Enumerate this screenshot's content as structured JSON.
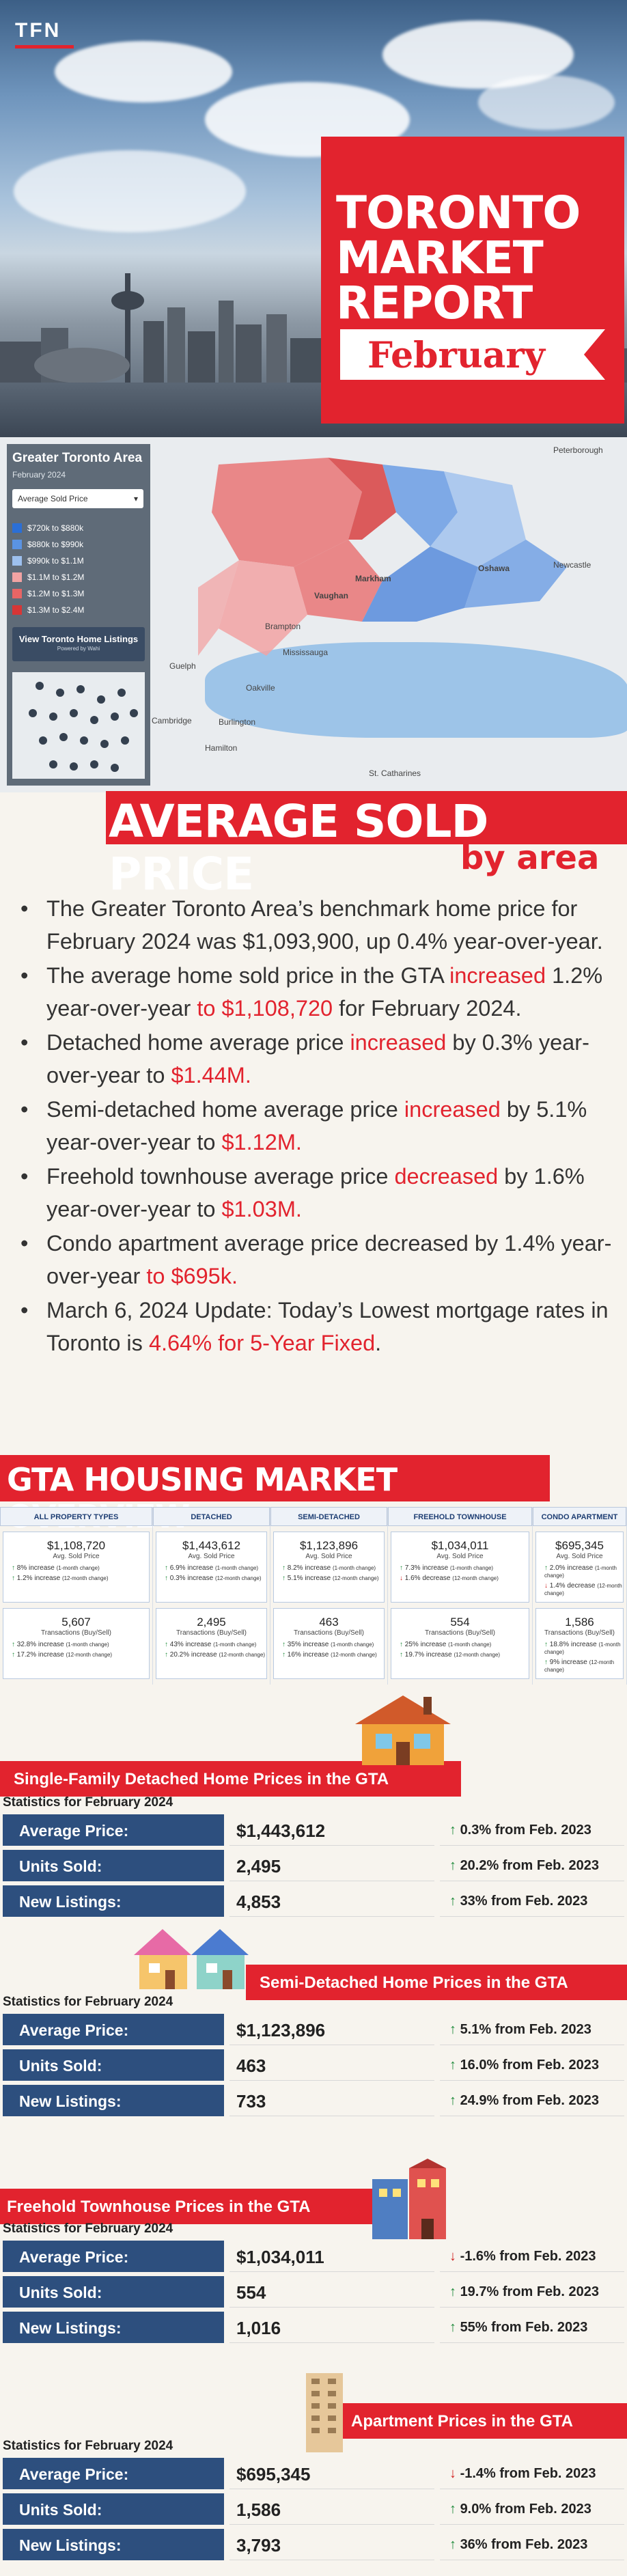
{
  "hero": {
    "logo": "TFN",
    "title_lines": [
      "TORONTO",
      "MARKET",
      "REPORT"
    ],
    "month": "February"
  },
  "map": {
    "panel_title": "Greater Toronto Area",
    "panel_sub": "February 2024",
    "select_value": "Average Sold Price",
    "legend": [
      {
        "label": "$720k to $880k",
        "color": "#2b6fd6"
      },
      {
        "label": "$880k to $990k",
        "color": "#5a93e3"
      },
      {
        "label": "$990k to $1.1M",
        "color": "#9dc0ee"
      },
      {
        "label": "$1.1M to $1.2M",
        "color": "#f2a3a3"
      },
      {
        "label": "$1.2M to $1.3M",
        "color": "#e86565"
      },
      {
        "label": "$1.3M to $2.4M",
        "color": "#d73636"
      }
    ],
    "button_title": "View Toronto Home Listings",
    "button_sub": "Powered by Wahi",
    "places": [
      "Peterborough",
      "Markham",
      "Vaughan",
      "Oshawa",
      "Brampton",
      "Mississauga",
      "Guelph",
      "Oakville",
      "Burlington",
      "Hamilton",
      "St. Catharines",
      "Cambridge",
      "Newcastle"
    ]
  },
  "headline": {
    "title": "AVERAGE SOLD PRICE",
    "subtitle": "by area"
  },
  "bullets": [
    [
      {
        "t": "The Greater Toronto Area’s benchmark home price for February 2024 was $1,093,900, up 0.4% year-over-year.",
        "c": ""
      }
    ],
    [
      {
        "t": "The average home sold price in the GTA ",
        "c": ""
      },
      {
        "t": "increased",
        "c": "red"
      },
      {
        "t": " 1.2% year-over-year ",
        "c": ""
      },
      {
        "t": "to $1,108,720",
        "c": "red"
      },
      {
        "t": " for February 2024.",
        "c": ""
      }
    ],
    [
      {
        "t": "Detached home average price ",
        "c": ""
      },
      {
        "t": "increased",
        "c": "red"
      },
      {
        "t": " by 0.3% year-over-year to ",
        "c": ""
      },
      {
        "t": "$1.44M.",
        "c": "red"
      }
    ],
    [
      {
        "t": "Semi-detached home average price ",
        "c": ""
      },
      {
        "t": "increased",
        "c": "red"
      },
      {
        "t": " by 5.1% year-over-year to ",
        "c": ""
      },
      {
        "t": "$1.12M.",
        "c": "red"
      }
    ],
    [
      {
        "t": "Freehold townhouse average price ",
        "c": ""
      },
      {
        "t": "decreased",
        "c": "red"
      },
      {
        "t": " by 1.6% year-over-year to ",
        "c": ""
      },
      {
        "t": "$1.03M.",
        "c": "red"
      }
    ],
    [
      {
        "t": "Condo apartment average price decreased by 1.4% year-over-year ",
        "c": ""
      },
      {
        "t": "to $695k.",
        "c": "red"
      }
    ],
    [
      {
        "t": "March 6, 2024 Update: Today’s Lowest mortgage rates in Toronto is ",
        "c": ""
      },
      {
        "t": "4.64% for 5-Year Fixed",
        "c": "red"
      },
      {
        "t": ".",
        "c": ""
      }
    ]
  ],
  "overview": {
    "title": "GTA HOUSING MARKET OVERVIEW",
    "columns": [
      {
        "head": "ALL PROPERTY TYPES",
        "price": "$1,108,720",
        "price_label": "Avg. Sold Price",
        "p1": "8% increase",
        "p1n": "(1-month change)",
        "p1d": "up",
        "p2": "1.2% increase",
        "p2n": "(12-month change)",
        "p2d": "up",
        "tx": "5,607",
        "tx_label": "Transactions (Buy/Sell)",
        "t1": "32.8% increase",
        "t1n": "(1-month change)",
        "t1d": "up",
        "t2": "17.2% increase",
        "t2n": "(12-month change)",
        "t2d": "up"
      },
      {
        "head": "DETACHED",
        "price": "$1,443,612",
        "price_label": "Avg. Sold Price",
        "p1": "6.9% increase",
        "p1n": "(1-month change)",
        "p1d": "up",
        "p2": "0.3% increase",
        "p2n": "(12-month change)",
        "p2d": "up",
        "tx": "2,495",
        "tx_label": "Transactions (Buy/Sell)",
        "t1": "43% increase",
        "t1n": "(1-month change)",
        "t1d": "up",
        "t2": "20.2% increase",
        "t2n": "(12-month change)",
        "t2d": "up"
      },
      {
        "head": "SEMI-DETACHED",
        "price": "$1,123,896",
        "price_label": "Avg. Sold Price",
        "p1": "8.2% increase",
        "p1n": "(1-month change)",
        "p1d": "up",
        "p2": "5.1% increase",
        "p2n": "(12-month change)",
        "p2d": "up",
        "tx": "463",
        "tx_label": "Transactions (Buy/Sell)",
        "t1": "35% increase",
        "t1n": "(1-month change)",
        "t1d": "up",
        "t2": "16% increase",
        "t2n": "(12-month change)",
        "t2d": "up"
      },
      {
        "head": "FREEHOLD TOWNHOUSE",
        "price": "$1,034,011",
        "price_label": "Avg. Sold Price",
        "p1": "7.3% increase",
        "p1n": "(1-month change)",
        "p1d": "up",
        "p2": "1.6% decrease",
        "p2n": "(12-month change)",
        "p2d": "down",
        "tx": "554",
        "tx_label": "Transactions (Buy/Sell)",
        "t1": "25% increase",
        "t1n": "(1-month change)",
        "t1d": "up",
        "t2": "19.7% increase",
        "t2n": "(12-month change)",
        "t2d": "up"
      },
      {
        "head": "CONDO APARTMENT",
        "price": "$695,345",
        "price_label": "Avg. Sold Price",
        "p1": "2.0% increase",
        "p1n": "(1-month change)",
        "p1d": "up",
        "p2": "1.4% decrease",
        "p2n": "(12-month change)",
        "p2d": "down",
        "tx": "1,586",
        "tx_label": "Transactions (Buy/Sell)",
        "t1": "18.8% increase",
        "t1n": "(1-month change)",
        "t1d": "up",
        "t2": "9% increase",
        "t2n": "(12-month change)",
        "t2d": "up"
      }
    ]
  },
  "sections": [
    {
      "banner": "Single-Family Detached Home Prices in the GTA",
      "stats_label": "Statistics for February 2024",
      "rows": [
        {
          "k": "Average Price:",
          "v": "$1,443,612",
          "c": "0.3% from Feb. 2023",
          "d": "up"
        },
        {
          "k": "Units Sold:",
          "v": "2,495",
          "c": "20.2% from Feb. 2023",
          "d": "up"
        },
        {
          "k": "New Listings:",
          "v": "4,853",
          "c": "33% from Feb. 2023",
          "d": "up"
        }
      ]
    },
    {
      "banner": "Semi-Detached Home Prices in the GTA",
      "stats_label": "Statistics for February 2024",
      "rows": [
        {
          "k": "Average Price:",
          "v": "$1,123,896",
          "c": "5.1% from Feb. 2023",
          "d": "up"
        },
        {
          "k": "Units Sold:",
          "v": "463",
          "c": "16.0% from Feb. 2023",
          "d": "up"
        },
        {
          "k": "New Listings:",
          "v": "733",
          "c": "24.9% from Feb. 2023",
          "d": "up"
        }
      ]
    },
    {
      "banner": "Freehold Townhouse Prices in the GTA",
      "stats_label": "Statistics for February 2024",
      "rows": [
        {
          "k": "Average Price:",
          "v": "$1,034,011",
          "c": "-1.6% from Feb. 2023",
          "d": "down"
        },
        {
          "k": "Units Sold:",
          "v": "554",
          "c": "19.7% from Feb. 2023",
          "d": "up"
        },
        {
          "k": "New Listings:",
          "v": "1,016",
          "c": "55% from Feb. 2023",
          "d": "up"
        }
      ]
    },
    {
      "banner": "Apartment Prices in the GTA",
      "stats_label": "Statistics for February 2024",
      "rows": [
        {
          "k": "Average Price:",
          "v": "$695,345",
          "c": "-1.4% from Feb. 2023",
          "d": "down"
        },
        {
          "k": "Units Sold:",
          "v": "1,586",
          "c": "9.0% from Feb. 2023",
          "d": "up"
        },
        {
          "k": "New Listings:",
          "v": "3,793",
          "c": "36% from Feb. 2023",
          "d": "up"
        }
      ]
    }
  ]
}
